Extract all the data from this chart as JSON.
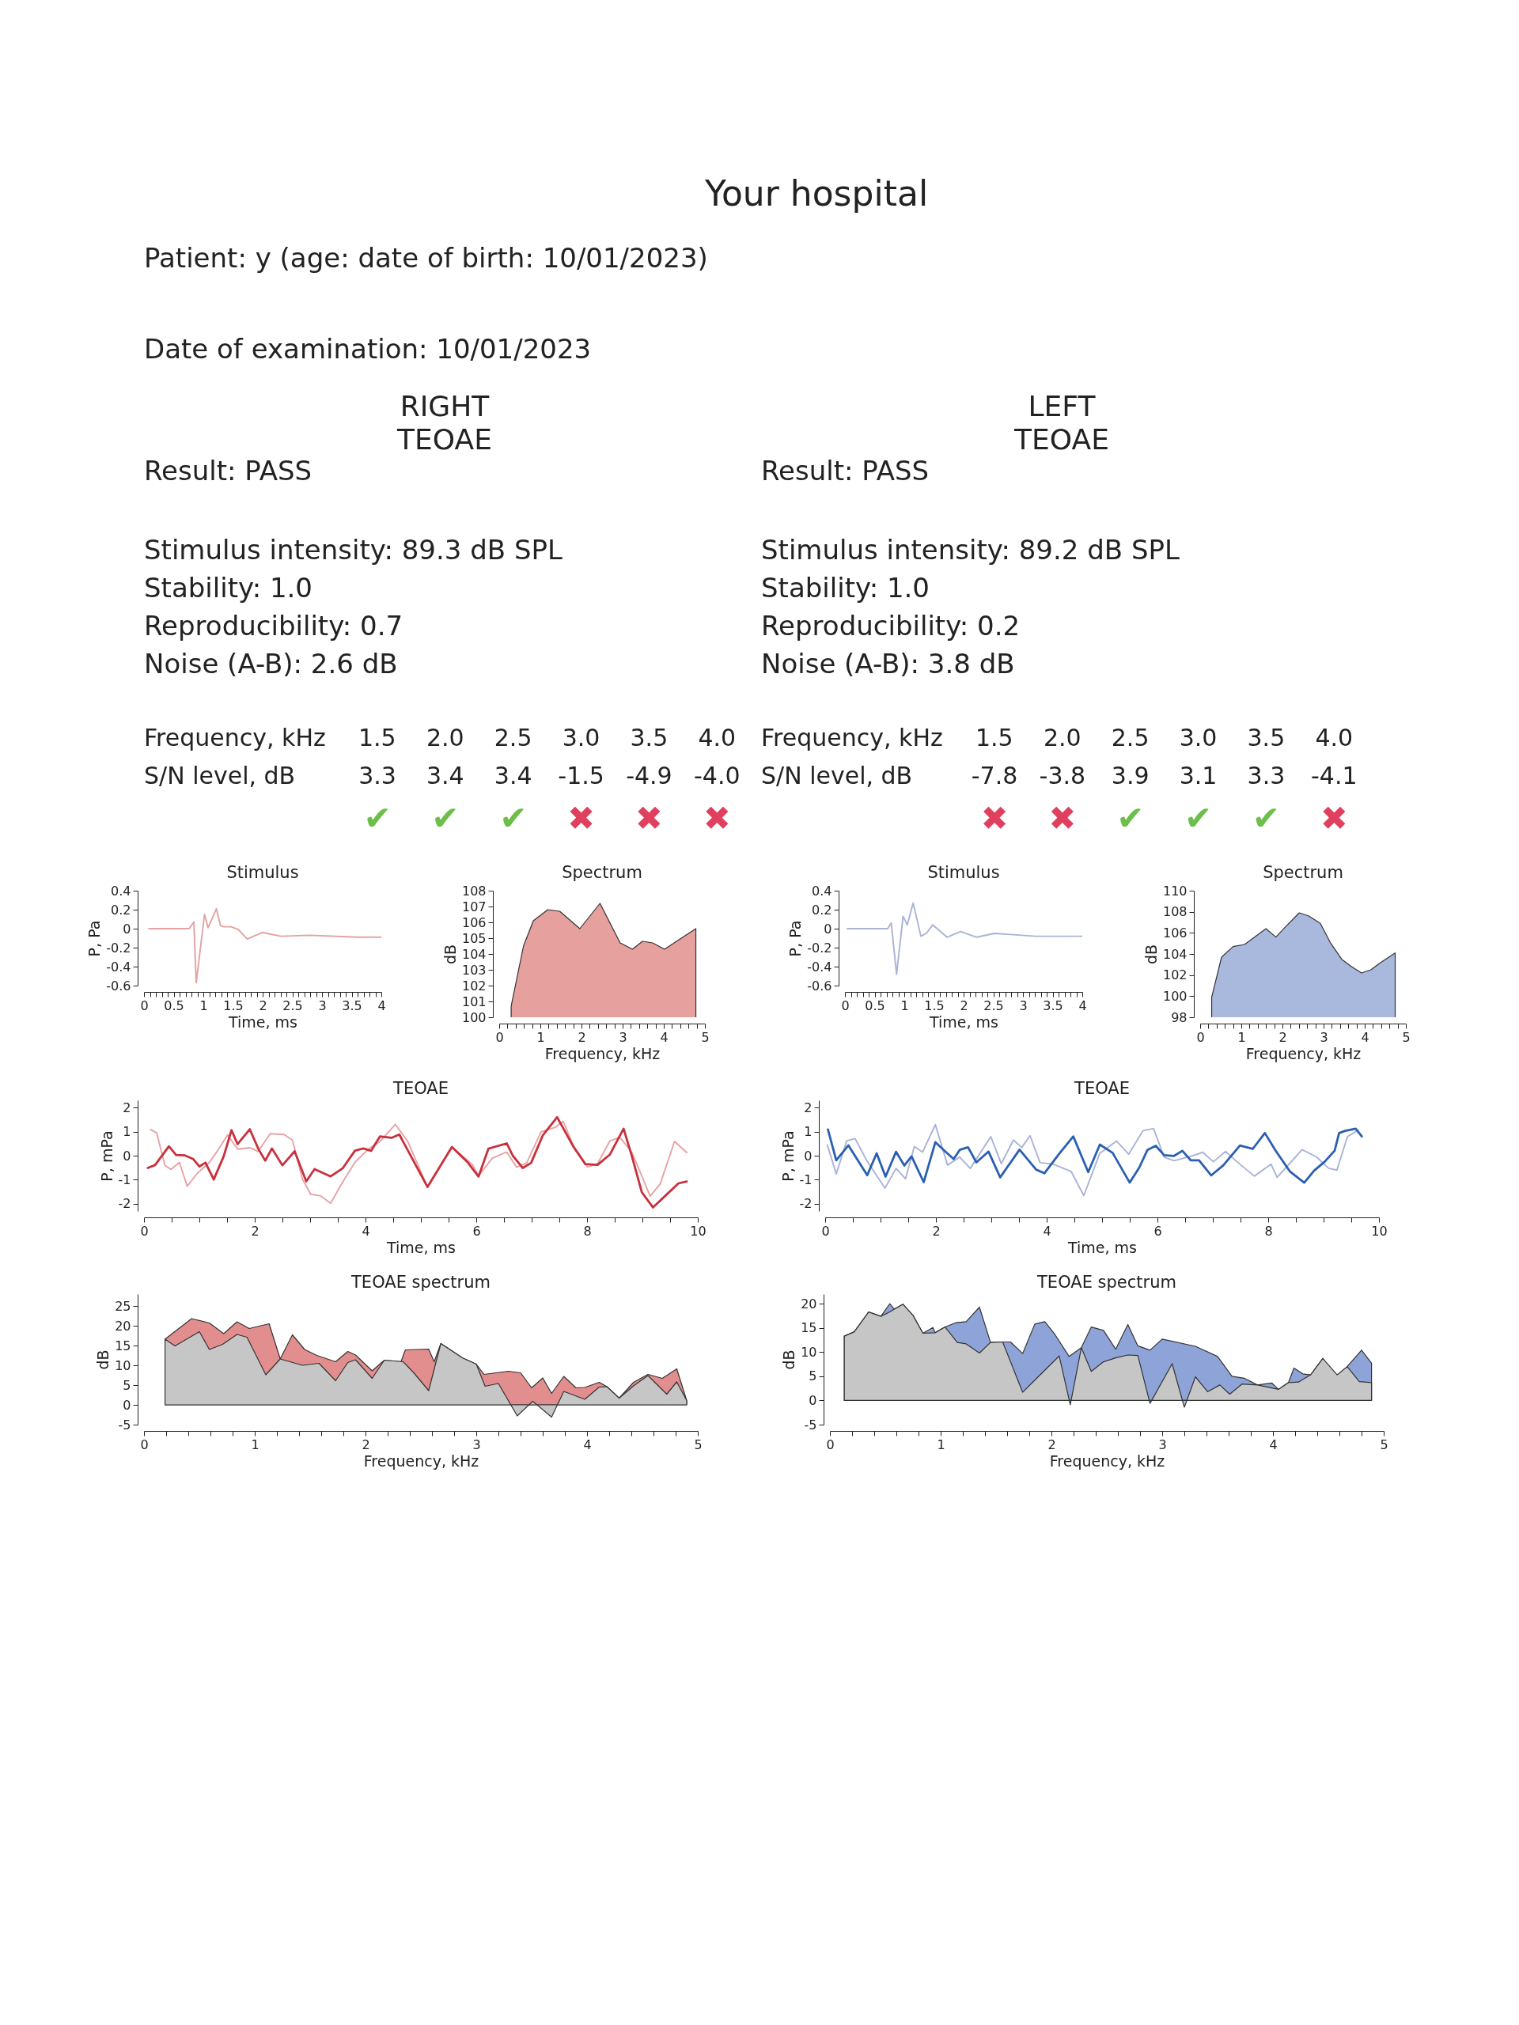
{
  "chart_data": [
    {
      "type": "other",
      "title": "Your hospital",
      "annotations": [
        "Patient: y (age: date of birth: 10/01/2023)",
        "Date of examination: 10/01/2023"
      ]
    },
    {
      "type": "other",
      "title": "RIGHT",
      "subtitle": "TEOAE",
      "annotations": [
        "Result: PASS",
        "Stimulus intensity: 89.3 dB SPL",
        "Stability: 1.0",
        "Reproducibility: 0.7",
        "Noise (A-B): 2.6 dB"
      ]
    },
    {
      "type": "other",
      "title": "LEFT",
      "subtitle": "TEOAE",
      "annotations": [
        "Result: PASS",
        "Stimulus intensity: 89.2 dB SPL",
        "Stability: 1.0",
        "Reproducibility: 0.2",
        "Noise (A-B): 3.8 dB"
      ]
    },
    {
      "type": "other",
      "annotations": [
        "Frequency, kHz",
        "1.5  2.0  2.5  3.0  3.5  4.0",
        "S/N level, dB",
        "3.3",
        "3.4",
        "3.4",
        "-1.5",
        "-4.9",
        "-4.0",
        "✔",
        "✔",
        "✔",
        "✖",
        "✖",
        "✖"
      ],
      "colors": [
        "#222222",
        "#222222",
        "#222222",
        "#222222",
        "#222222",
        "#222222",
        "#222222",
        "#222222",
        "#222222",
        "#6cbf4a",
        "#6cbf4a",
        "#6cbf4a",
        "#e0405e",
        "#e0405e",
        "#e0405e"
      ]
    },
    {
      "type": "other",
      "annotations": [
        "Frequency, kHz",
        "1.5  2.0  2.5  3.0  3.5  4.0",
        "S/N level, dB",
        "-7.8",
        "-3.8",
        "3.9",
        "3.1",
        "3.3",
        "-4.1",
        "✖",
        "✖",
        "✔",
        "✔",
        "✔",
        "✖"
      ],
      "colors": [
        "#222222",
        "#222222",
        "#222222",
        "#222222",
        "#222222",
        "#222222",
        "#222222",
        "#222222",
        "#222222",
        "#e0405e",
        "#e0405e",
        "#6cbf4a",
        "#6cbf4a",
        "#6cbf4a",
        "#e0405e"
      ]
    },
    {
      "type": "line",
      "title": "Stimulus",
      "xlabel": "Time, ms",
      "ylabel": "P, Pa",
      "xlim": [
        0,
        4
      ],
      "ylim": [
        -0.6,
        0.4
      ],
      "yticks": [
        -0.6,
        -0.4,
        -0.2,
        0,
        0.2,
        0.4
      ],
      "xticks": [
        0,
        {
          "value": 0.1,
          "label": null
        },
        {
          "value": 0.2,
          "label": null
        },
        {
          "value": 0.3,
          "label": null
        },
        {
          "value": 0.4,
          "label": null
        },
        0.5,
        {
          "value": 0.6,
          "label": null
        },
        {
          "value": 0.7,
          "label": null
        },
        {
          "value": 0.8,
          "label": null
        },
        {
          "value": 0.9,
          "label": null
        },
        1,
        {
          "value": 1.1,
          "label": null
        },
        {
          "value": 1.2,
          "label": null
        },
        {
          "value": 1.3,
          "label": null
        },
        {
          "value": 1.4,
          "label": null
        },
        1.5,
        {
          "value": 1.6,
          "label": null
        },
        {
          "value": 1.7,
          "label": null
        },
        {
          "value": 1.8,
          "label": null
        },
        {
          "value": 1.9,
          "label": null
        },
        2,
        {
          "value": 2.1,
          "label": null
        },
        {
          "value": 2.2,
          "label": null
        },
        {
          "value": 2.3,
          "label": null
        },
        {
          "value": 2.4,
          "label": null
        },
        2.5,
        {
          "value": 2.6,
          "label": null
        },
        {
          "value": 2.7,
          "label": null
        },
        {
          "value": 2.8,
          "label": null
        },
        {
          "value": 2.9,
          "label": null
        },
        3,
        {
          "value": 3.1,
          "label": null
        },
        {
          "value": 3.2,
          "label": null
        },
        {
          "value": 3.3,
          "label": null
        },
        {
          "value": 3.4,
          "label": null
        },
        3.5,
        {
          "value": 3.6,
          "label": null
        },
        {
          "value": 3.7,
          "label": null
        },
        {
          "value": 3.8,
          "label": null
        },
        {
          "value": 3.9,
          "label": null
        },
        4
      ],
      "series": [
        {
          "color": "#e2a2a2",
          "x": [
            0.08,
            0.76,
            0.84,
            0.88,
            1.02,
            1.08,
            1.22,
            1.29,
            1.35,
            1.47,
            1.59,
            1.74,
            1.99,
            2.31,
            2.79,
            3.59,
            4.0
          ],
          "values": [
            0,
            0,
            0.07,
            -0.57,
            0.15,
            0.01,
            0.21,
            0.03,
            0.02,
            0.02,
            -0.01,
            -0.11,
            -0.04,
            -0.08,
            -0.07,
            -0.09,
            -0.09
          ]
        }
      ]
    },
    {
      "type": "area",
      "title": "Spectrum",
      "xlabel": "Frequency, kHz",
      "ylabel": "dB",
      "xlim": [
        0,
        5
      ],
      "ylim": [
        100,
        108
      ],
      "yticks": [
        100,
        101,
        102,
        103,
        104,
        105,
        106,
        107,
        108
      ],
      "xticks": [
        0,
        {
          "value": 0.2,
          "label": null
        },
        {
          "value": 0.4,
          "label": null
        },
        {
          "value": 0.6,
          "label": null
        },
        {
          "value": 0.8,
          "label": null
        },
        1,
        {
          "value": 1.2,
          "label": null
        },
        {
          "value": 1.4,
          "label": null
        },
        {
          "value": 1.6,
          "label": null
        },
        {
          "value": 1.8,
          "label": null
        },
        2,
        {
          "value": 2.2,
          "label": null
        },
        {
          "value": 2.4,
          "label": null
        },
        {
          "value": 2.6,
          "label": null
        },
        {
          "value": 2.8,
          "label": null
        },
        3,
        {
          "value": 3.2,
          "label": null
        },
        {
          "value": 3.4,
          "label": null
        },
        {
          "value": 3.6,
          "label": null
        },
        {
          "value": 3.8,
          "label": null
        },
        4,
        {
          "value": 4.2,
          "label": null
        },
        {
          "value": 4.4,
          "label": null
        },
        {
          "value": 4.6,
          "label": null
        },
        {
          "value": 4.8,
          "label": null
        },
        5
      ],
      "series": [
        {
          "color": "#e6a09e",
          "x": [
            0.29,
            0.59,
            0.83,
            1.18,
            1.47,
            1.96,
            2.45,
            2.94,
            3.24,
            3.48,
            3.73,
            4.02,
            4.31,
            4.78
          ],
          "values": [
            100.7,
            104.5,
            106.1,
            106.8,
            106.7,
            105.6,
            107.2,
            104.7,
            104.3,
            104.8,
            104.7,
            104.3,
            104.8,
            105.6
          ]
        }
      ]
    },
    {
      "type": "line",
      "title": "Stimulus",
      "xlabel": "Time, ms",
      "ylabel": "P, Pa",
      "xlim": [
        0,
        4
      ],
      "ylim": [
        -0.6,
        0.4
      ],
      "yticks": [
        -0.6,
        -0.4,
        -0.2,
        0,
        0.2,
        0.4
      ],
      "xticks": [
        0,
        {
          "value": 0.1,
          "label": null
        },
        {
          "value": 0.2,
          "label": null
        },
        {
          "value": 0.3,
          "label": null
        },
        {
          "value": 0.4,
          "label": null
        },
        0.5,
        {
          "value": 0.6,
          "label": null
        },
        {
          "value": 0.7,
          "label": null
        },
        {
          "value": 0.8,
          "label": null
        },
        {
          "value": 0.9,
          "label": null
        },
        1,
        {
          "value": 1.1,
          "label": null
        },
        {
          "value": 1.2,
          "label": null
        },
        {
          "value": 1.3,
          "label": null
        },
        {
          "value": 1.4,
          "label": null
        },
        1.5,
        {
          "value": 1.6,
          "label": null
        },
        {
          "value": 1.7,
          "label": null
        },
        {
          "value": 1.8,
          "label": null
        },
        {
          "value": 1.9,
          "label": null
        },
        2,
        {
          "value": 2.1,
          "label": null
        },
        {
          "value": 2.2,
          "label": null
        },
        {
          "value": 2.3,
          "label": null
        },
        {
          "value": 2.4,
          "label": null
        },
        2.5,
        {
          "value": 2.6,
          "label": null
        },
        {
          "value": 2.7,
          "label": null
        },
        {
          "value": 2.8,
          "label": null
        },
        {
          "value": 2.9,
          "label": null
        },
        3,
        {
          "value": 3.1,
          "label": null
        },
        {
          "value": 3.2,
          "label": null
        },
        {
          "value": 3.3,
          "label": null
        },
        {
          "value": 3.4,
          "label": null
        },
        3.5,
        {
          "value": 3.6,
          "label": null
        },
        {
          "value": 3.7,
          "label": null
        },
        {
          "value": 3.8,
          "label": null
        },
        {
          "value": 3.9,
          "label": null
        },
        4
      ],
      "series": [
        {
          "color": "#a9b3d6",
          "x": [
            0.04,
            0.72,
            0.78,
            0.87,
            0.98,
            1.05,
            1.15,
            1.28,
            1.37,
            1.48,
            1.72,
            1.95,
            2.22,
            2.52,
            3.22,
            4.0
          ],
          "values": [
            0,
            0,
            0.06,
            -0.48,
            0.13,
            0.04,
            0.27,
            -0.08,
            -0.05,
            0.04,
            -0.09,
            -0.03,
            -0.09,
            -0.05,
            -0.08,
            -0.08
          ]
        }
      ]
    },
    {
      "type": "area",
      "title": "Spectrum",
      "xlabel": "Frequency, kHz",
      "ylabel": "dB",
      "xlim": [
        0,
        5
      ],
      "ylim": [
        98,
        110
      ],
      "yticks": [
        98,
        100,
        102,
        104,
        106,
        108,
        110
      ],
      "xticks": [
        0,
        {
          "value": 0.2,
          "label": null
        },
        {
          "value": 0.4,
          "label": null
        },
        {
          "value": 0.6,
          "label": null
        },
        {
          "value": 0.8,
          "label": null
        },
        1,
        {
          "value": 1.2,
          "label": null
        },
        {
          "value": 1.4,
          "label": null
        },
        {
          "value": 1.6,
          "label": null
        },
        {
          "value": 1.8,
          "label": null
        },
        2,
        {
          "value": 2.2,
          "label": null
        },
        {
          "value": 2.4,
          "label": null
        },
        {
          "value": 2.6,
          "label": null
        },
        {
          "value": 2.8,
          "label": null
        },
        3,
        {
          "value": 3.2,
          "label": null
        },
        {
          "value": 3.4,
          "label": null
        },
        {
          "value": 3.6,
          "label": null
        },
        {
          "value": 3.8,
          "label": null
        },
        4,
        {
          "value": 4.2,
          "label": null
        },
        {
          "value": 4.4,
          "label": null
        },
        {
          "value": 4.6,
          "label": null
        },
        {
          "value": 4.8,
          "label": null
        },
        5
      ],
      "series": [
        {
          "color": "#a9b9de",
          "x": [
            0.28,
            0.52,
            0.8,
            1.08,
            1.6,
            1.84,
            2.08,
            2.41,
            2.64,
            2.92,
            3.16,
            3.44,
            3.68,
            3.92,
            4.15,
            4.39,
            4.74
          ],
          "values": [
            99.9,
            103.7,
            104.7,
            104.9,
            106.4,
            105.6,
            106.6,
            107.9,
            107.6,
            106.9,
            105.1,
            103.5,
            102.8,
            102.2,
            102.5,
            103.2,
            104.1
          ]
        }
      ]
    },
    {
      "type": "line",
      "title": "TEOAE",
      "xlabel": "Time, ms",
      "ylabel": "P, mPa",
      "xlim": [
        0,
        10
      ],
      "ylim": [
        -2.3,
        2.3
      ],
      "yticks": [
        -2,
        -1,
        0,
        1,
        2
      ],
      "xticks": [
        0,
        {
          "value": 0.5,
          "label": null
        },
        {
          "value": 1,
          "label": null
        },
        {
          "value": 1.5,
          "label": null
        },
        2,
        {
          "value": 2.5,
          "label": null
        },
        {
          "value": 3,
          "label": null
        },
        {
          "value": 3.5,
          "label": null
        },
        4,
        {
          "value": 4.5,
          "label": null
        },
        {
          "value": 5,
          "label": null
        },
        {
          "value": 5.5,
          "label": null
        },
        6,
        {
          "value": 6.5,
          "label": null
        },
        {
          "value": 7,
          "label": null
        },
        {
          "value": 7.5,
          "label": null
        },
        8,
        {
          "value": 8.5,
          "label": null
        },
        {
          "value": 9,
          "label": null
        },
        {
          "value": 9.5,
          "label": null
        },
        10
      ],
      "series": [
        {
          "color": "#e8a2a6",
          "x": [
            0.12,
            0.23,
            0.38,
            0.49,
            0.64,
            0.78,
            0.96,
            1.18,
            1.33,
            1.51,
            1.69,
            1.91,
            2.06,
            2.28,
            2.53,
            2.68,
            2.86,
            3.01,
            3.19,
            3.37,
            3.55,
            3.81,
            4.07,
            4.25,
            4.54,
            4.76,
            5.12,
            5.56,
            5.93,
            6.04,
            6.29,
            6.55,
            6.73,
            6.91,
            7.17,
            7.42,
            7.57,
            7.79,
            8.01,
            8.19,
            8.41,
            8.59,
            8.81,
            9.14,
            9.32,
            9.58,
            9.8
          ],
          "values": [
            1.09,
            0.94,
            -0.41,
            -0.57,
            -0.28,
            -1.27,
            -0.74,
            -0.28,
            0.21,
            0.86,
            0.27,
            0.33,
            0.18,
            0.91,
            0.88,
            0.65,
            -0.97,
            -1.6,
            -1.67,
            -1.98,
            -1.24,
            -0.27,
            0.31,
            0.56,
            1.3,
            0.6,
            -1.3,
            0.36,
            -0.37,
            -0.84,
            -0.1,
            0.15,
            -0.48,
            -0.3,
            0.99,
            1.17,
            1.42,
            0.23,
            -0.47,
            -0.33,
            0.6,
            0.77,
            0.14,
            -1.68,
            -1.18,
            0.59,
            0.13
          ]
        },
        {
          "color": "#c8303c",
          "x": [
            0.07,
            0.2,
            0.45,
            0.58,
            0.74,
            0.89,
            1.0,
            1.11,
            1.26,
            1.44,
            1.58,
            1.69,
            1.91,
            2.07,
            2.19,
            2.31,
            2.5,
            2.72,
            2.93,
            3.08,
            3.37,
            3.59,
            3.81,
            3.96,
            4.1,
            4.26,
            4.47,
            4.61,
            5.12,
            5.56,
            5.85,
            6.04,
            6.22,
            6.55,
            6.66,
            6.84,
            6.99,
            7.2,
            7.46,
            7.75,
            7.97,
            8.19,
            8.41,
            8.66,
            8.81,
            8.99,
            9.19,
            9.43,
            9.65,
            9.8
          ],
          "values": [
            -0.51,
            -0.39,
            0.39,
            0.03,
            0.01,
            -0.14,
            -0.45,
            -0.29,
            -0.99,
            -0.02,
            1.06,
            0.48,
            1.1,
            0.26,
            -0.21,
            0.3,
            -0.4,
            0.18,
            -1.07,
            -0.56,
            -0.86,
            -0.52,
            0.21,
            0.3,
            0.2,
            0.8,
            0.74,
            0.88,
            -1.3,
            0.36,
            -0.29,
            -0.87,
            0.29,
            0.51,
            0,
            -0.51,
            -0.3,
            0.84,
            1.6,
            0.39,
            -0.35,
            -0.38,
            0.04,
            1.12,
            -0.02,
            -1.52,
            -2.15,
            -1.63,
            -1.15,
            -1.07
          ]
        }
      ]
    },
    {
      "type": "line",
      "title": "TEOAE",
      "xlabel": "Time, ms",
      "ylabel": "P, mPa",
      "xlim": [
        0,
        10
      ],
      "ylim": [
        -2.3,
        2.3
      ],
      "yticks": [
        -2,
        -1,
        0,
        1,
        2
      ],
      "xticks": [
        0,
        {
          "value": 0.5,
          "label": null
        },
        {
          "value": 1,
          "label": null
        },
        {
          "value": 1.5,
          "label": null
        },
        2,
        {
          "value": 2.5,
          "label": null
        },
        {
          "value": 3,
          "label": null
        },
        {
          "value": 3.5,
          "label": null
        },
        4,
        {
          "value": 4.5,
          "label": null
        },
        {
          "value": 5,
          "label": null
        },
        {
          "value": 5.5,
          "label": null
        },
        6,
        {
          "value": 6.5,
          "label": null
        },
        {
          "value": 7,
          "label": null
        },
        {
          "value": 7.5,
          "label": null
        },
        8,
        {
          "value": 8.5,
          "label": null
        },
        {
          "value": 9,
          "label": null
        },
        {
          "value": 9.5,
          "label": null
        },
        10
      ],
      "series": [
        {
          "color": "#a9b3d6",
          "x": [
            0.04,
            0.2,
            0.39,
            0.54,
            0.76,
            1.08,
            1.28,
            1.45,
            1.61,
            1.76,
            1.99,
            2.21,
            2.43,
            2.62,
            2.99,
            3.18,
            3.4,
            3.55,
            3.7,
            3.88,
            4.11,
            4.44,
            4.67,
            4.96,
            5.26,
            5.48,
            5.74,
            5.93,
            6.12,
            6.3,
            6.6,
            6.82,
            7.01,
            7.23,
            7.46,
            7.75,
            8.05,
            8.16,
            8.39,
            8.61,
            8.87,
            9.09,
            9.24,
            9.43,
            9.61
          ],
          "values": [
            0.44,
            -0.76,
            0.62,
            0.71,
            -0.24,
            -1.35,
            -0.53,
            -0.96,
            0.38,
            0.15,
            1.29,
            -0.39,
            -0.06,
            -0.53,
            0.79,
            -0.33,
            0.65,
            0.34,
            0.83,
            -0.29,
            -0.35,
            -0.65,
            -1.66,
            0.1,
            0.61,
            0.06,
            1.04,
            1.13,
            -0.06,
            -0.21,
            -0.03,
            0.14,
            -0.25,
            0.17,
            -0.3,
            -0.85,
            -0.35,
            -0.9,
            -0.32,
            0.25,
            -0.05,
            -0.52,
            -0.6,
            0.79,
            1.04
          ]
        },
        {
          "color": "#2a5fb2",
          "x": [
            0.05,
            0.2,
            0.42,
            0.76,
            0.93,
            1.09,
            1.28,
            1.43,
            1.56,
            1.78,
            1.99,
            2.17,
            2.32,
            2.43,
            2.58,
            2.73,
            2.95,
            3.16,
            3.51,
            3.81,
            3.96,
            4.22,
            4.48,
            4.75,
            4.96,
            5.19,
            5.5,
            5.67,
            5.82,
            5.97,
            6.12,
            6.3,
            6.45,
            6.6,
            6.75,
            6.97,
            7.19,
            7.49,
            7.72,
            7.94,
            8.13,
            8.39,
            8.65,
            8.83,
            9.02,
            9.2,
            9.28,
            9.39,
            9.58,
            9.69
          ],
          "values": [
            1.09,
            -0.19,
            0.43,
            -0.81,
            0.1,
            -0.87,
            0.16,
            -0.41,
            -0.03,
            -1.1,
            0.56,
            0.17,
            -0.14,
            0.24,
            0.35,
            -0.28,
            0.17,
            -0.9,
            0.25,
            -0.58,
            -0.73,
            0.06,
            0.8,
            -0.68,
            0.46,
            0.12,
            -1.12,
            -0.5,
            0.24,
            0.41,
            0.02,
            -0.01,
            0.2,
            -0.19,
            -0.19,
            -0.82,
            -0.4,
            0.42,
            0.28,
            0.94,
            0.22,
            -0.65,
            -1.12,
            -0.62,
            -0.25,
            0.21,
            0.94,
            1.03,
            1.12,
            0.8
          ]
        }
      ]
    },
    {
      "type": "area",
      "title": "TEOAE spectrum",
      "xlabel": "Frequency, kHz",
      "ylabel": "dB",
      "xlim": [
        0,
        5
      ],
      "ylim": [
        -5,
        28
      ],
      "yticks": [
        -5,
        0,
        5,
        10,
        15,
        20,
        25
      ],
      "xticks": [
        0,
        {
          "value": 0.2,
          "label": null
        },
        {
          "value": 0.4,
          "label": null
        },
        {
          "value": 0.6,
          "label": null
        },
        {
          "value": 0.8,
          "label": null
        },
        1,
        {
          "value": 1.2,
          "label": null
        },
        {
          "value": 1.4,
          "label": null
        },
        {
          "value": 1.6,
          "label": null
        },
        {
          "value": 1.8,
          "label": null
        },
        2,
        {
          "value": 2.2,
          "label": null
        },
        {
          "value": 2.4,
          "label": null
        },
        {
          "value": 2.6,
          "label": null
        },
        {
          "value": 2.8,
          "label": null
        },
        3,
        {
          "value": 3.2,
          "label": null
        },
        {
          "value": 3.4,
          "label": null
        },
        {
          "value": 3.6,
          "label": null
        },
        {
          "value": 3.8,
          "label": null
        },
        4,
        {
          "value": 4.2,
          "label": null
        },
        {
          "value": 4.4,
          "label": null
        },
        {
          "value": 4.6,
          "label": null
        },
        {
          "value": 4.8,
          "label": null
        },
        5
      ],
      "series": [
        {
          "color": "#e38e8e",
          "x": [
            0.19,
            0.43,
            0.59,
            0.72,
            0.84,
            0.95,
            1.13,
            1.23,
            1.34,
            1.45,
            1.56,
            1.73,
            1.84,
            1.91,
            2.06,
            2.17,
            2.32,
            2.36,
            2.57,
            2.62,
            2.68,
            2.88,
            3.0,
            3.07,
            3.29,
            3.4,
            3.5,
            3.6,
            3.68,
            3.79,
            3.9,
            3.98,
            4.11,
            4.18,
            4.29,
            4.42,
            4.55,
            4.68,
            4.81,
            4.9
          ],
          "values": [
            16.6,
            21.8,
            20.7,
            18.0,
            21.0,
            19.3,
            20.5,
            11.6,
            17.7,
            14.0,
            12.5,
            10.9,
            13.5,
            12.6,
            8.6,
            11.3,
            10.9,
            13.9,
            14.1,
            10.9,
            15.5,
            11.8,
            10.3,
            7.7,
            8.5,
            8.1,
            4.3,
            6.8,
            2.9,
            7.2,
            4.3,
            4.4,
            5.7,
            4.6,
            1.7,
            5.7,
            7.7,
            6.7,
            9.1,
            1.1
          ]
        },
        {
          "color": "#c6c6c6",
          "x": [
            0.19,
            0.28,
            0.5,
            0.59,
            0.71,
            0.84,
            0.93,
            1.1,
            1.23,
            1.43,
            1.58,
            1.73,
            1.84,
            1.91,
            2.06,
            2.17,
            2.34,
            2.43,
            2.57,
            2.68,
            2.88,
            3.0,
            3.08,
            3.2,
            3.37,
            3.51,
            3.68,
            3.79,
            3.98,
            4.11,
            4.18,
            4.29,
            4.42,
            4.55,
            4.72,
            4.81,
            4.9
          ],
          "values": [
            16.6,
            14.9,
            18.5,
            14.0,
            15.3,
            17.8,
            17.1,
            7.6,
            11.6,
            10.0,
            10.5,
            6.1,
            10.7,
            11.4,
            6.7,
            11.3,
            10.9,
            8.3,
            3.6,
            15.5,
            11.8,
            10.3,
            4.7,
            5.4,
            -2.8,
            0.9,
            -3.1,
            3.4,
            1.4,
            4.5,
            4.6,
            1.7,
            4.8,
            7.4,
            2.7,
            5.8,
            1.1
          ]
        }
      ]
    },
    {
      "type": "area",
      "title": "TEOAE spectrum",
      "xlabel": "Frequency, kHz",
      "ylabel": "dB",
      "xlim": [
        0,
        5
      ],
      "ylim": [
        -5,
        22
      ],
      "yticks": [
        -5,
        0,
        5,
        10,
        15,
        20
      ],
      "xticks": [
        0,
        {
          "value": 0.2,
          "label": null
        },
        {
          "value": 0.4,
          "label": null
        },
        {
          "value": 0.6,
          "label": null
        },
        {
          "value": 0.8,
          "label": null
        },
        1,
        {
          "value": 1.2,
          "label": null
        },
        {
          "value": 1.4,
          "label": null
        },
        {
          "value": 1.6,
          "label": null
        },
        {
          "value": 1.8,
          "label": null
        },
        2,
        {
          "value": 2.2,
          "label": null
        },
        {
          "value": 2.4,
          "label": null
        },
        {
          "value": 2.6,
          "label": null
        },
        {
          "value": 2.8,
          "label": null
        },
        3,
        {
          "value": 3.2,
          "label": null
        },
        {
          "value": 3.4,
          "label": null
        },
        {
          "value": 3.6,
          "label": null
        },
        {
          "value": 3.8,
          "label": null
        },
        4,
        {
          "value": 4.2,
          "label": null
        },
        {
          "value": 4.4,
          "label": null
        },
        {
          "value": 4.6,
          "label": null
        },
        {
          "value": 4.8,
          "label": null
        },
        5
      ],
      "series": [
        {
          "color": "#8ea4d8",
          "x": [
            0.13,
            0.22,
            0.35,
            0.46,
            0.54,
            0.58,
            0.66,
            0.75,
            0.84,
            0.93,
            0.95,
            1.04,
            1.14,
            1.23,
            1.35,
            1.45,
            1.56,
            1.63,
            1.74,
            1.85,
            1.94,
            2.03,
            2.16,
            2.27,
            2.36,
            2.47,
            2.58,
            2.69,
            2.78,
            2.89,
            3.0,
            3.3,
            3.5,
            3.63,
            3.74,
            3.86,
            3.99,
            4.05,
            4.14,
            4.19,
            4.27,
            4.34,
            4.45,
            4.58,
            4.67,
            4.8,
            4.89
          ],
          "values": [
            13.3,
            14.2,
            18.3,
            17.4,
            20.0,
            18.9,
            19.9,
            17.6,
            13.9,
            15.1,
            14.0,
            15.2,
            16.1,
            16.3,
            19.3,
            12.0,
            12.1,
            12.1,
            9.7,
            15.8,
            16.3,
            13.7,
            9.1,
            10.9,
            15.2,
            14.5,
            10.6,
            15.7,
            11.3,
            10.4,
            12.7,
            11.2,
            9.1,
            5.0,
            4.6,
            3.2,
            3.6,
            2.3,
            3.7,
            6.7,
            5.5,
            5.3,
            8.7,
            null,
            7.0,
            10.4,
            7.7
          ]
        },
        {
          "color": "#c6c6c6",
          "x": [
            0.13,
            0.22,
            0.35,
            0.46,
            0.53,
            0.66,
            0.75,
            0.84,
            0.95,
            1.04,
            1.15,
            1.23,
            1.35,
            1.45,
            1.56,
            1.74,
            1.85,
            2.07,
            2.17,
            2.27,
            2.36,
            2.47,
            2.58,
            2.69,
            2.78,
            2.89,
            3.09,
            3.2,
            3.3,
            3.41,
            3.52,
            3.61,
            3.72,
            3.86,
            4.05,
            4.14,
            4.23,
            4.34,
            4.45,
            4.58,
            4.67,
            4.78,
            4.89
          ],
          "values": [
            13.3,
            14.2,
            18.3,
            17.4,
            18.2,
            19.9,
            17.6,
            13.9,
            14.0,
            15.2,
            12.0,
            11.7,
            9.8,
            12.0,
            12.1,
            1.7,
            4.2,
            9.2,
            -0.9,
            10.9,
            6.0,
            8.0,
            8.8,
            9.4,
            9.3,
            -0.6,
            7.6,
            -1.4,
            4.9,
            1.8,
            3.2,
            1.3,
            3.4,
            3.2,
            2.3,
            3.7,
            3.8,
            5.3,
            8.7,
            5.3,
            7.0,
            3.9,
            3.7
          ]
        }
      ]
    }
  ]
}
